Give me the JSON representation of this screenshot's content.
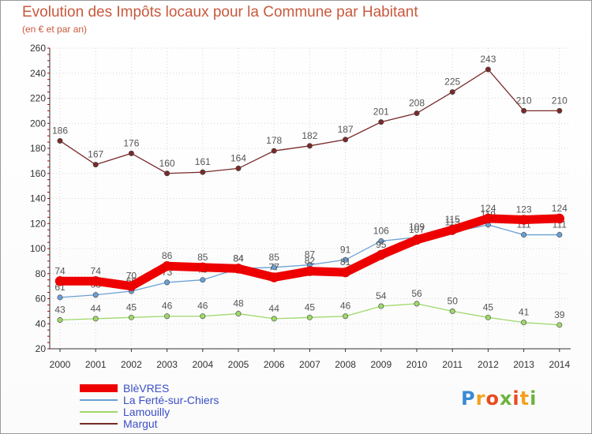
{
  "title": "Evolution des Impôts locaux pour la Commune par Habitant",
  "subtitle": "(en € et par an)",
  "logo": {
    "letters": [
      "P",
      "r",
      "o",
      "x",
      "i",
      "t",
      "i"
    ],
    "colors": [
      "#3a8ad4",
      "#f2a21e",
      "#e94b1f",
      "#6cb33e",
      "#e94b1f",
      "#f2a21e",
      "#6cb33e"
    ]
  },
  "chart_data": {
    "type": "line",
    "title": "Evolution des Impôts locaux pour la Commune par Habitant",
    "subtitle": "(en € et par an)",
    "x": [
      "2000",
      "2001",
      "2002",
      "2003",
      "2004",
      "2005",
      "2006",
      "2007",
      "2008",
      "2009",
      "2010",
      "2011",
      "2012",
      "2013",
      "2014"
    ],
    "ylim": [
      20,
      260
    ],
    "yticks": [
      20,
      40,
      60,
      80,
      100,
      120,
      140,
      160,
      180,
      200,
      220,
      240,
      260
    ],
    "grid": true,
    "legend_position": "bottom-left",
    "series": [
      {
        "name": "Margut",
        "color": "#7a2a2a",
        "label_color": "#555555",
        "values": [
          186,
          167,
          176,
          160,
          161,
          164,
          178,
          182,
          187,
          201,
          208,
          225,
          243,
          210,
          210
        ]
      },
      {
        "name": "Lamouilly",
        "color": "#9fd86a",
        "label_color": "#555555",
        "values": [
          43,
          44,
          45,
          46,
          46,
          48,
          44,
          45,
          46,
          54,
          56,
          50,
          45,
          41,
          39
        ]
      },
      {
        "name": "La Ferté-sur-Chiers",
        "color": "#6a9fd4",
        "label_color": "#555555",
        "values": [
          61,
          63,
          66,
          73,
          75,
          84,
          85,
          87,
          91,
          106,
          109,
          113,
          119,
          111,
          111
        ]
      },
      {
        "name": "BlèVRES",
        "color": "#ee0000",
        "label_color": "#555555",
        "values": [
          74,
          74,
          70,
          86,
          85,
          84,
          77,
          82,
          81,
          95,
          107,
          115,
          124,
          123,
          124
        ]
      }
    ],
    "legend_order": [
      "BlèVRES",
      "La Ferté-sur-Chiers",
      "Lamouilly",
      "Margut"
    ]
  }
}
